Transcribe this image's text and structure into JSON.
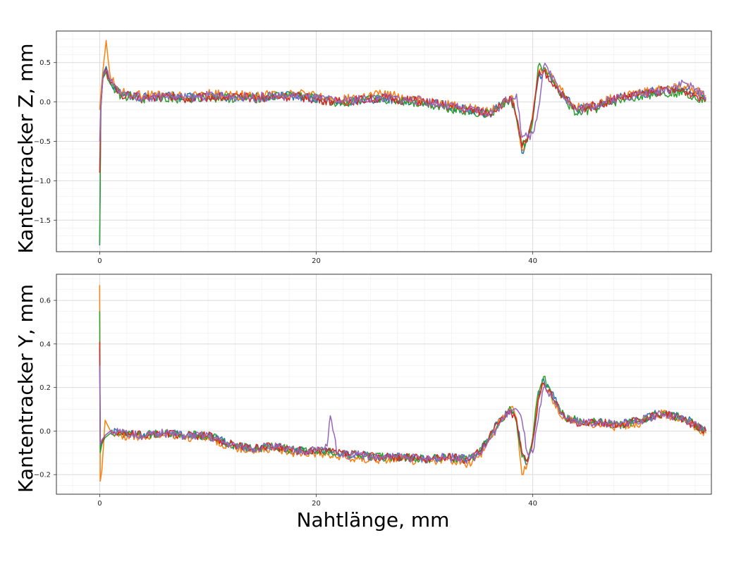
{
  "chart_data": [
    {
      "type": "line",
      "title": "",
      "xlabel": "",
      "ylabel": "Kantentracker Z, mm",
      "xlim": [
        -4,
        56.5
      ],
      "ylim": [
        -1.9,
        0.9
      ],
      "xticks": [
        0,
        20,
        40
      ],
      "yticks": [
        -1.5,
        -1.0,
        -0.5,
        0.0,
        0.5
      ],
      "ytick_labels": [
        "−1.5",
        "−1.0",
        "−0.5",
        "0.0",
        "0.5"
      ],
      "grid": true,
      "series": [
        {
          "color": "#1f77b4",
          "x": [
            0,
            0.1,
            0.3,
            0.6,
            1,
            2,
            4,
            6,
            8,
            10,
            14,
            18,
            22,
            26,
            30,
            34,
            36,
            37,
            38,
            38.5,
            39,
            39.5,
            40,
            40.5,
            41,
            42,
            43,
            44,
            46,
            48,
            50,
            52,
            54,
            56
          ],
          "values": [
            -1.82,
            -0.1,
            0.35,
            0.45,
            0.25,
            0.1,
            0.06,
            0.08,
            0.05,
            0.08,
            0.05,
            0.08,
            0.0,
            0.05,
            0.0,
            -0.1,
            -0.15,
            -0.05,
            0.05,
            -0.2,
            -0.65,
            -0.5,
            -0.2,
            0.3,
            0.4,
            0.25,
            0.05,
            -0.1,
            -0.05,
            0.05,
            0.1,
            0.15,
            0.15,
            0.05
          ]
        },
        {
          "color": "#ff7f0e",
          "x": [
            0,
            0.1,
            0.3,
            0.6,
            1,
            2,
            4,
            6,
            8,
            10,
            14,
            18,
            22,
            26,
            30,
            34,
            36,
            37,
            38,
            38.5,
            39,
            39.5,
            40,
            40.5,
            41,
            42,
            43,
            44,
            46,
            48,
            50,
            52,
            54,
            56
          ],
          "values": [
            -0.1,
            0.1,
            0.4,
            0.78,
            0.3,
            0.12,
            0.08,
            0.1,
            0.06,
            0.1,
            0.08,
            0.12,
            0.02,
            0.1,
            0.02,
            -0.08,
            -0.12,
            -0.03,
            0.08,
            -0.18,
            -0.6,
            -0.45,
            -0.15,
            0.35,
            0.42,
            0.28,
            0.08,
            -0.08,
            -0.02,
            0.08,
            0.12,
            0.18,
            0.2,
            0.08
          ]
        },
        {
          "color": "#2ca02c",
          "x": [
            0,
            0.1,
            0.3,
            0.6,
            1,
            2,
            4,
            6,
            8,
            10,
            14,
            18,
            22,
            26,
            30,
            34,
            36,
            37,
            38,
            38.5,
            39,
            39.5,
            40,
            40.5,
            41,
            42,
            43,
            44,
            46,
            48,
            50,
            52,
            54,
            56
          ],
          "values": [
            -1.8,
            -0.05,
            0.3,
            0.38,
            0.22,
            0.08,
            0.04,
            0.06,
            0.03,
            0.06,
            0.04,
            0.1,
            -0.02,
            0.04,
            -0.02,
            -0.12,
            -0.16,
            -0.06,
            0.04,
            -0.22,
            -0.55,
            -0.5,
            -0.25,
            0.45,
            0.42,
            0.22,
            0.02,
            -0.15,
            -0.08,
            0.02,
            0.08,
            0.12,
            0.12,
            0.02
          ]
        },
        {
          "color": "#d62728",
          "x": [
            0,
            0.1,
            0.3,
            0.6,
            1,
            2,
            4,
            6,
            8,
            10,
            14,
            18,
            22,
            26,
            30,
            34,
            36,
            37,
            38,
            38.5,
            39,
            39.5,
            40,
            40.5,
            41,
            42,
            43,
            44,
            46,
            48,
            50,
            52,
            54,
            56
          ],
          "values": [
            -0.9,
            -0.08,
            0.32,
            0.42,
            0.24,
            0.09,
            0.05,
            0.07,
            0.04,
            0.07,
            0.05,
            0.07,
            0.0,
            0.05,
            0.0,
            -0.1,
            -0.14,
            -0.04,
            0.05,
            -0.2,
            -0.58,
            -0.48,
            -0.2,
            0.32,
            0.38,
            0.22,
            0.04,
            -0.1,
            -0.04,
            0.06,
            0.1,
            0.14,
            0.14,
            0.04
          ]
        },
        {
          "color": "#9467bd",
          "x": [
            0,
            0.1,
            0.3,
            0.6,
            1,
            2,
            4,
            6,
            8,
            10,
            14,
            18,
            22,
            26,
            30,
            34,
            36,
            37,
            38,
            38.5,
            39,
            39.5,
            40,
            40.5,
            41,
            42,
            43,
            44,
            46,
            48,
            50,
            52,
            54,
            56
          ],
          "values": [
            -0.5,
            -0.06,
            0.34,
            0.4,
            0.26,
            0.1,
            0.06,
            0.08,
            0.05,
            0.08,
            0.06,
            0.08,
            0.01,
            0.06,
            0.01,
            -0.1,
            -0.14,
            -0.05,
            0.06,
            0.1,
            -0.45,
            -0.45,
            -0.4,
            -0.1,
            0.45,
            0.3,
            0.05,
            -0.1,
            -0.03,
            0.06,
            0.1,
            0.15,
            0.25,
            0.06
          ]
        }
      ]
    },
    {
      "type": "line",
      "title": "",
      "xlabel": "Nahtlänge, mm",
      "ylabel": "Kantentracker Y, mm",
      "xlim": [
        -4,
        56.5
      ],
      "ylim": [
        -0.29,
        0.72
      ],
      "xticks": [
        0,
        20,
        40
      ],
      "yticks": [
        -0.2,
        0.0,
        0.2,
        0.4,
        0.6
      ],
      "ytick_labels": [
        "−0.2",
        "0.0",
        "0.2",
        "0.4",
        "0.6"
      ],
      "grid": true,
      "series": [
        {
          "color": "#1f77b4",
          "x": [
            0,
            0.05,
            0.2,
            0.5,
            1,
            2,
            4,
            6,
            8,
            10,
            12,
            14,
            16,
            18,
            20,
            22,
            24,
            26,
            28,
            30,
            32,
            34,
            35,
            36,
            37,
            38,
            38.5,
            39,
            39.5,
            40,
            40.5,
            41,
            42,
            43,
            44,
            46,
            48,
            50,
            52,
            54,
            56
          ],
          "values": [
            0.38,
            -0.08,
            -0.05,
            -0.02,
            0.0,
            -0.01,
            -0.02,
            -0.01,
            -0.02,
            -0.02,
            -0.06,
            -0.08,
            -0.07,
            -0.09,
            -0.09,
            -0.1,
            -0.11,
            -0.12,
            -0.12,
            -0.13,
            -0.12,
            -0.13,
            -0.1,
            -0.02,
            0.06,
            0.1,
            0.05,
            -0.1,
            -0.15,
            -0.05,
            0.15,
            0.24,
            0.15,
            0.06,
            0.05,
            0.04,
            0.03,
            0.05,
            0.09,
            0.06,
            0.0
          ]
        },
        {
          "color": "#ff7f0e",
          "x": [
            0,
            0.05,
            0.2,
            0.5,
            1,
            2,
            4,
            6,
            8,
            10,
            12,
            14,
            16,
            18,
            20,
            22,
            24,
            26,
            28,
            30,
            32,
            34,
            35,
            36,
            37,
            38,
            38.5,
            39,
            39.5,
            40,
            40.5,
            41,
            42,
            43,
            44,
            46,
            48,
            50,
            52,
            54,
            56
          ],
          "values": [
            0.67,
            -0.23,
            -0.18,
            0.05,
            0.0,
            -0.02,
            -0.03,
            -0.02,
            -0.03,
            -0.03,
            -0.07,
            -0.09,
            -0.08,
            -0.1,
            -0.1,
            -0.12,
            -0.13,
            -0.13,
            -0.13,
            -0.14,
            -0.13,
            -0.15,
            -0.12,
            -0.04,
            0.05,
            0.11,
            0.06,
            -0.2,
            -0.15,
            -0.03,
            0.16,
            0.22,
            0.13,
            0.05,
            0.04,
            0.03,
            0.02,
            0.04,
            0.08,
            0.05,
            -0.01
          ]
        },
        {
          "color": "#2ca02c",
          "x": [
            0,
            0.05,
            0.2,
            0.5,
            1,
            2,
            4,
            6,
            8,
            10,
            12,
            14,
            16,
            18,
            20,
            22,
            24,
            26,
            28,
            30,
            32,
            34,
            35,
            36,
            37,
            38,
            38.5,
            39,
            39.5,
            40,
            40.5,
            41,
            42,
            43,
            44,
            46,
            48,
            50,
            52,
            54,
            56
          ],
          "values": [
            0.55,
            -0.1,
            -0.06,
            -0.03,
            -0.01,
            -0.01,
            -0.02,
            -0.01,
            -0.02,
            -0.02,
            -0.06,
            -0.08,
            -0.07,
            -0.09,
            -0.09,
            -0.1,
            -0.11,
            -0.12,
            -0.12,
            -0.13,
            -0.12,
            -0.13,
            -0.1,
            -0.03,
            0.05,
            0.1,
            0.04,
            -0.12,
            -0.13,
            -0.03,
            0.18,
            0.25,
            0.14,
            0.06,
            0.05,
            0.04,
            0.03,
            0.05,
            0.08,
            0.06,
            0.0
          ]
        },
        {
          "color": "#d62728",
          "x": [
            0,
            0.05,
            0.2,
            0.5,
            1,
            2,
            4,
            6,
            8,
            10,
            12,
            14,
            16,
            18,
            20,
            22,
            24,
            26,
            28,
            30,
            32,
            34,
            35,
            36,
            37,
            38,
            38.5,
            39,
            39.5,
            40,
            40.5,
            41,
            42,
            43,
            44,
            46,
            48,
            50,
            52,
            54,
            56
          ],
          "values": [
            0.41,
            -0.06,
            -0.05,
            -0.02,
            0.0,
            -0.01,
            -0.02,
            -0.01,
            -0.02,
            -0.02,
            -0.06,
            -0.08,
            -0.07,
            -0.09,
            -0.09,
            -0.1,
            -0.11,
            -0.12,
            -0.12,
            -0.13,
            -0.12,
            -0.13,
            -0.1,
            -0.02,
            0.05,
            0.09,
            0.05,
            -0.1,
            -0.14,
            -0.04,
            0.14,
            0.22,
            0.14,
            0.06,
            0.04,
            0.04,
            0.03,
            0.05,
            0.08,
            0.05,
            0.0
          ]
        },
        {
          "color": "#9467bd",
          "x": [
            0,
            0.05,
            0.2,
            0.5,
            1,
            2,
            4,
            6,
            8,
            10,
            12,
            14,
            16,
            18,
            20,
            21,
            21.3,
            22,
            24,
            26,
            28,
            30,
            32,
            34,
            35,
            36,
            37,
            38,
            38.5,
            39,
            39.5,
            40,
            40.5,
            41,
            42,
            43,
            44,
            46,
            48,
            50,
            52,
            54,
            56
          ],
          "values": [
            0.3,
            -0.06,
            -0.04,
            -0.02,
            0.0,
            -0.01,
            -0.02,
            -0.01,
            -0.02,
            -0.02,
            -0.06,
            -0.08,
            -0.07,
            -0.09,
            -0.09,
            -0.07,
            0.07,
            -0.11,
            -0.11,
            -0.12,
            -0.12,
            -0.13,
            -0.12,
            -0.13,
            -0.11,
            -0.04,
            0.04,
            0.1,
            0.1,
            0.05,
            -0.1,
            -0.1,
            0.05,
            0.2,
            0.13,
            0.06,
            0.04,
            0.04,
            0.03,
            0.05,
            0.08,
            0.05,
            0.0
          ]
        }
      ]
    }
  ]
}
